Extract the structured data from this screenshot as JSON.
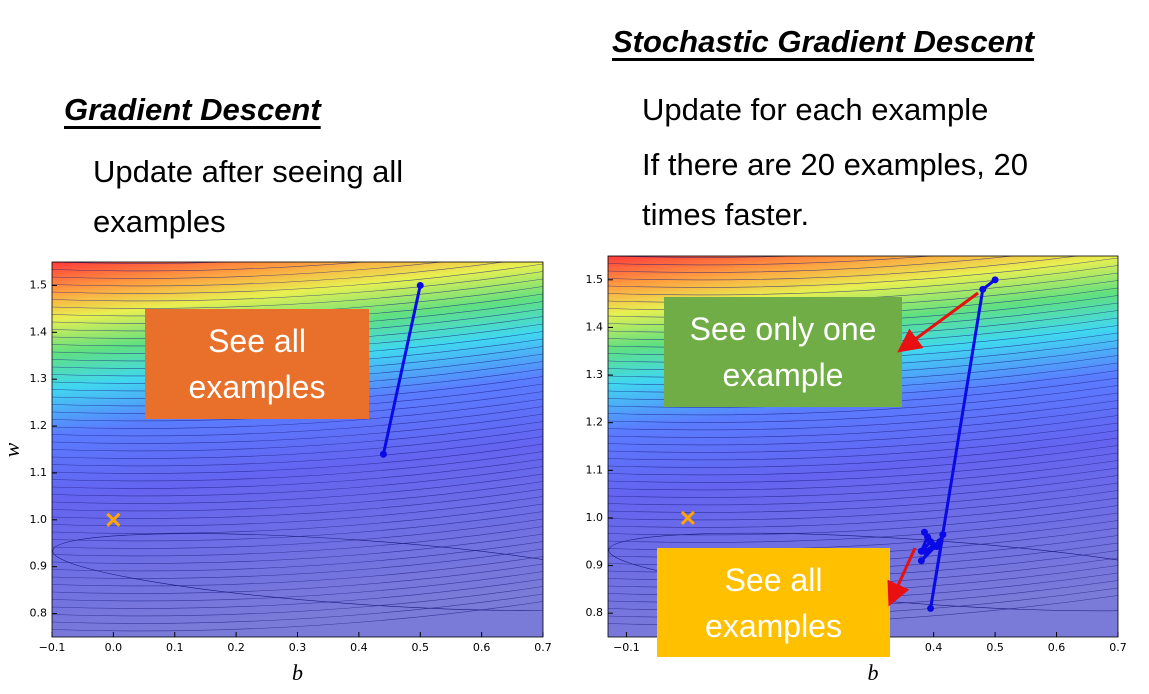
{
  "slide": {
    "left_heading": "Gradient Descent",
    "left_text": "Update after seeing all examples",
    "right_heading": "Stochastic Gradient Descent",
    "right_text_1": "Update for each example",
    "right_text_2": "If there are 20 examples, 20 times faster."
  },
  "chart_data": [
    {
      "type": "line",
      "xlabel": "b",
      "ylabel": "w",
      "xlim": [
        -0.1,
        0.7
      ],
      "ylim": [
        0.75,
        1.55
      ],
      "xticks": [
        {
          "value": -0.1,
          "label": "−0.1"
        },
        {
          "value": 0,
          "label": "0.0"
        },
        0.1,
        0.2,
        0.3,
        0.4,
        0.5,
        0.6,
        0.7
      ],
      "yticks": [
        0.8,
        0.9,
        {
          "value": 1,
          "label": "1.0"
        },
        1.1,
        1.2,
        1.3,
        1.4,
        1.5
      ],
      "series": [
        {
          "color": "#0a0ae6",
          "x": [
            0.5,
            0.44
          ],
          "values": [
            1.5,
            1.14
          ]
        }
      ],
      "markers": [
        {
          "x": 0,
          "y": 1,
          "color": "#ffa500"
        }
      ],
      "annotations": [
        "See all examples"
      ]
    },
    {
      "type": "line",
      "xlabel": "b",
      "xlim": [
        -0.13,
        0.7
      ],
      "ylim": [
        0.75,
        1.55
      ],
      "xticks": [
        {
          "value": -0.1,
          "label": "−0.1"
        },
        0.4,
        0.5,
        0.6,
        0.7
      ],
      "yticks": [
        0.8,
        0.9,
        {
          "value": 1,
          "label": "1.0"
        },
        1.1,
        1.2,
        1.3,
        1.4,
        1.5
      ],
      "series": [
        {
          "color": "#0a0ae6",
          "x": [
            0.5,
            0.48,
            0.395,
            0.415,
            0.405,
            0.385,
            0.395,
            0.38,
            0.39,
            0.4,
            0.38,
            0.41,
            0.385
          ],
          "values": [
            1.5,
            1.48,
            0.81,
            0.965,
            0.94,
            0.97,
            0.95,
            0.93,
            0.96,
            0.94,
            0.91,
            0.95,
            0.93
          ]
        }
      ],
      "markers": [
        {
          "x": 0,
          "y": 1,
          "color": "#ffa500"
        }
      ],
      "annotations": [
        "See only one example",
        "See all examples"
      ]
    }
  ]
}
